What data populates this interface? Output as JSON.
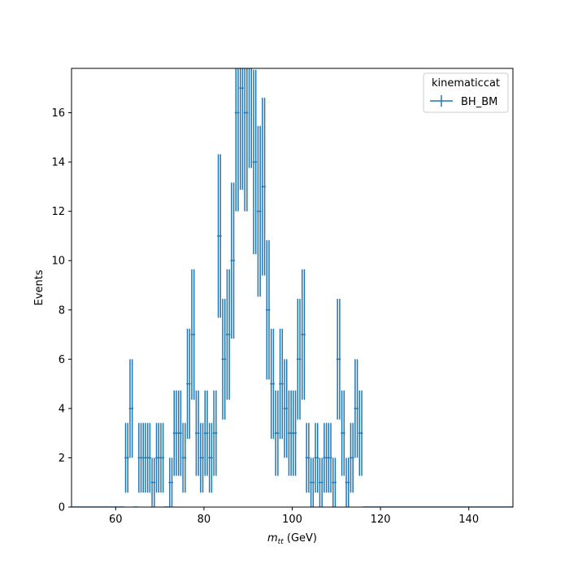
{
  "chart_data": {
    "type": "histogram-errorbar",
    "title": "",
    "xlabel_main": "m",
    "xlabel_sub": "tt",
    "xlabel_unit": " (GeV)",
    "ylabel": "Events",
    "xlim": [
      50,
      150
    ],
    "ylim": [
      0,
      17.8
    ],
    "xticks": [
      60,
      80,
      100,
      120,
      140
    ],
    "yticks": [
      0,
      2,
      4,
      6,
      8,
      10,
      12,
      14,
      16
    ],
    "legend": {
      "title": "kinematiccat",
      "position": "top-right",
      "entries": [
        "BH_BM"
      ]
    },
    "grid": false,
    "series": [
      {
        "name": "BH_BM",
        "color": "#1f77b4",
        "bin_width": 0.5,
        "bins_start": 62,
        "counts": [
          2,
          2,
          4,
          4,
          0,
          0,
          2,
          2,
          2,
          2,
          2,
          2,
          1,
          1,
          2,
          2,
          2,
          2,
          0,
          0,
          1,
          1,
          3,
          3,
          3,
          3,
          2,
          2,
          5,
          5,
          7,
          7,
          3,
          3,
          2,
          2,
          3,
          3,
          2,
          2,
          3,
          3,
          11,
          11,
          6,
          6,
          7,
          7,
          10,
          10,
          16,
          16,
          17,
          17,
          16,
          16,
          18,
          18,
          14,
          14,
          12,
          12,
          13,
          13,
          8,
          8,
          5,
          5,
          3,
          3,
          5,
          5,
          4,
          4,
          3,
          3,
          3,
          3,
          6,
          6,
          7,
          7,
          2,
          2,
          1,
          1,
          2,
          2,
          1,
          1,
          2,
          2,
          2,
          2,
          1,
          1,
          6,
          6,
          3,
          3,
          1,
          1,
          2,
          2,
          4,
          4,
          3,
          3,
          0,
          0
        ]
      }
    ]
  }
}
